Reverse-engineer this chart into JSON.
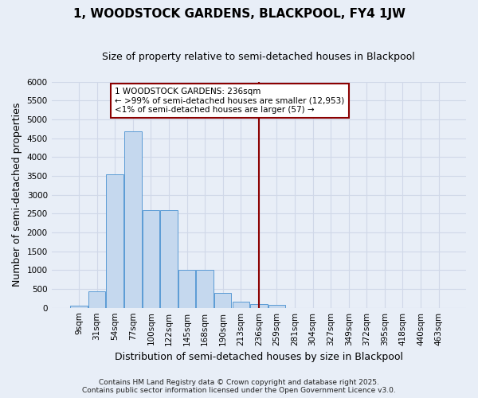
{
  "title": "1, WOODSTOCK GARDENS, BLACKPOOL, FY4 1JW",
  "subtitle": "Size of property relative to semi-detached houses in Blackpool",
  "xlabel": "Distribution of semi-detached houses by size in Blackpool",
  "ylabel": "Number of semi-detached properties",
  "categories": [
    "9sqm",
    "31sqm",
    "54sqm",
    "77sqm",
    "100sqm",
    "122sqm",
    "145sqm",
    "168sqm",
    "190sqm",
    "213sqm",
    "236sqm",
    "259sqm",
    "281sqm",
    "304sqm",
    "327sqm",
    "349sqm",
    "372sqm",
    "395sqm",
    "418sqm",
    "440sqm",
    "463sqm"
  ],
  "values": [
    50,
    430,
    3550,
    4680,
    2600,
    2600,
    1000,
    1000,
    390,
    170,
    100,
    70,
    0,
    0,
    0,
    0,
    0,
    0,
    0,
    0,
    0
  ],
  "bar_color": "#c5d8ee",
  "bar_edge_color": "#5b9bd5",
  "highlight_index": 10,
  "highlight_line_color": "#8b0000",
  "annotation_text": "1 WOODSTOCK GARDENS: 236sqm\n← >99% of semi-detached houses are smaller (12,953)\n<1% of semi-detached houses are larger (57) →",
  "annotation_box_color": "#8b0000",
  "ylim": [
    0,
    6000
  ],
  "yticks": [
    0,
    500,
    1000,
    1500,
    2000,
    2500,
    3000,
    3500,
    4000,
    4500,
    5000,
    5500,
    6000
  ],
  "footer_text": "Contains HM Land Registry data © Crown copyright and database right 2025.\nContains public sector information licensed under the Open Government Licence v3.0.",
  "background_color": "#e8eef7",
  "plot_background_color": "#e8eef7",
  "grid_color": "#d0d8e8",
  "title_fontsize": 11,
  "subtitle_fontsize": 9,
  "axis_label_fontsize": 9,
  "tick_fontsize": 7.5,
  "annotation_fontsize": 7.5,
  "footer_fontsize": 6.5
}
